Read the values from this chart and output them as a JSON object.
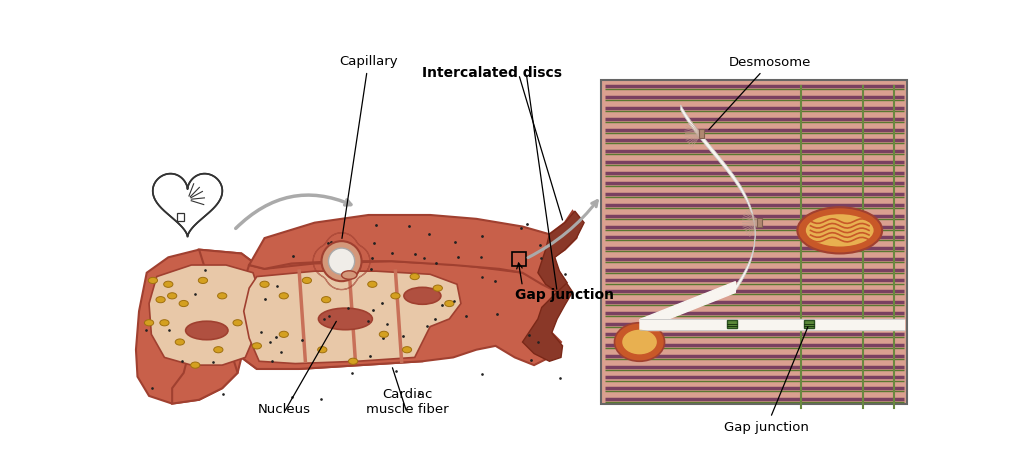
{
  "bg_color": "#ffffff",
  "labels": {
    "capillary": "Capillary",
    "intercalated_discs": "Intercalated discs",
    "desmosome": "Desmosome",
    "gap_junction_main": "Gap junction",
    "gap_junction_zoom": "Gap junction",
    "nucleus": "Nucleus",
    "cardiac_muscle_fiber": "Cardiac\nmuscle fiber"
  },
  "colors": {
    "muscle_main": "#c8604a",
    "muscle_mid": "#cc6650",
    "muscle_light": "#d4725a",
    "muscle_dark": "#a04030",
    "muscle_very_dark": "#7a2818",
    "muscle_interior_bg": "#e8c8a8",
    "muscle_interior_wall": "#c87058",
    "nucleus_color": "#b05040",
    "mito_yellow": "#d4a020",
    "capillary_wall": "#d4987a",
    "capillary_lumen": "#f0ede8",
    "zoom_bg": "#daa090",
    "sarcomere_purple": "#7a4060",
    "sarcomere_green": "#5a7830",
    "sarcomere_z_green": "#6a8840",
    "membrane_white": "#f8f5f0",
    "mito_outer": "#c85828",
    "mito_inner": "#e8b050",
    "gap_green": "#5a8838",
    "desmosome_tan": "#c0a080",
    "heart_stroke": "#333333",
    "arrow_gray": "#aaaaaa",
    "black": "#000000",
    "black_dot": "#222222",
    "disc_end": "#8a3828"
  }
}
